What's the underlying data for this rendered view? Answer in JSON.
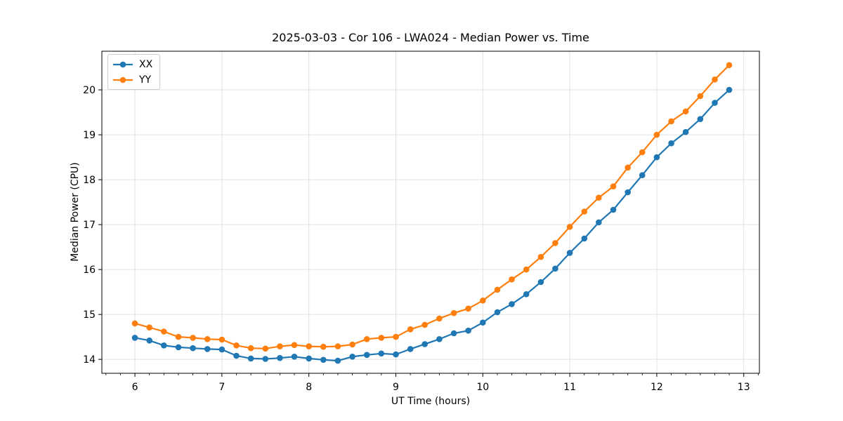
{
  "chart_data": {
    "type": "line",
    "title": "2025-03-03 - Cor 106 - LWA024 - Median Power vs. Time",
    "xlabel": "UT Time (hours)",
    "ylabel": "Median Power (CPU)",
    "xlim": [
      5.62,
      13.18
    ],
    "ylim": [
      13.69,
      20.86
    ],
    "x_ticks": [
      6,
      7,
      8,
      9,
      10,
      11,
      12,
      13
    ],
    "y_ticks": [
      14,
      15,
      16,
      17,
      18,
      19,
      20
    ],
    "x_minor_step": 0.166667,
    "grid": true,
    "grid_color": "#e2e2e2",
    "legend_position": "upper-left",
    "x": [
      6.0,
      6.167,
      6.333,
      6.5,
      6.667,
      6.833,
      7.0,
      7.167,
      7.333,
      7.5,
      7.667,
      7.833,
      8.0,
      8.167,
      8.333,
      8.5,
      8.667,
      8.833,
      9.0,
      9.167,
      9.333,
      9.5,
      9.667,
      9.833,
      10.0,
      10.167,
      10.333,
      10.5,
      10.667,
      10.833,
      11.0,
      11.167,
      11.333,
      11.5,
      11.667,
      11.833,
      12.0,
      12.167,
      12.333,
      12.5,
      12.667,
      12.833
    ],
    "series": [
      {
        "name": "XX",
        "color": "#1f77b4",
        "values": [
          14.48,
          14.42,
          14.31,
          14.27,
          14.25,
          14.23,
          14.22,
          14.08,
          14.02,
          14.01,
          14.03,
          14.06,
          14.02,
          13.99,
          13.97,
          14.06,
          14.1,
          14.13,
          14.11,
          14.23,
          14.34,
          14.45,
          14.58,
          14.64,
          14.82,
          15.05,
          15.23,
          15.45,
          15.72,
          16.02,
          16.37,
          16.69,
          17.05,
          17.33,
          17.72,
          18.1,
          18.5,
          18.81,
          19.06,
          19.35,
          19.71,
          20.0
        ]
      },
      {
        "name": "YY",
        "color": "#ff7f0e",
        "values": [
          14.8,
          14.71,
          14.62,
          14.5,
          14.48,
          14.45,
          14.44,
          14.31,
          14.25,
          14.24,
          14.29,
          14.32,
          14.29,
          14.28,
          14.29,
          14.33,
          14.45,
          14.48,
          14.5,
          14.67,
          14.77,
          14.91,
          15.03,
          15.13,
          15.31,
          15.55,
          15.78,
          16.0,
          16.28,
          16.59,
          16.95,
          17.29,
          17.6,
          17.85,
          18.27,
          18.61,
          19.0,
          19.3,
          19.52,
          19.86,
          20.23,
          20.55
        ]
      }
    ]
  }
}
